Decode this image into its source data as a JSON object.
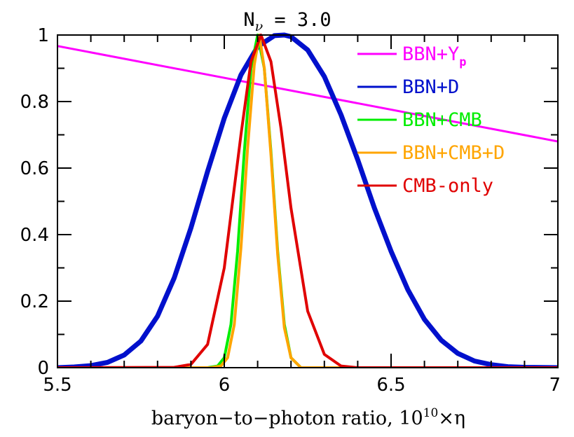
{
  "chart_data": {
    "type": "line",
    "title": {
      "main": "N",
      "sub": "ν",
      "rest": " = 3.0"
    },
    "xlabel": {
      "text": "baryon−to−photon ratio, 10",
      "sup": "10",
      "tail": "×η"
    },
    "ylabel": "",
    "xlim": [
      5.5,
      7.0
    ],
    "ylim": [
      0,
      1.0
    ],
    "x_ticks": [
      {
        "value": 5.5,
        "label": "5.5"
      },
      {
        "value": 6.0,
        "label": "6"
      },
      {
        "value": 6.5,
        "label": "6.5"
      },
      {
        "value": 7.0,
        "label": "7"
      }
    ],
    "y_ticks": [
      {
        "value": 0,
        "label": "0"
      },
      {
        "value": 0.2,
        "label": "0.2"
      },
      {
        "value": 0.4,
        "label": "0.4"
      },
      {
        "value": 0.6,
        "label": "0.6"
      },
      {
        "value": 0.8,
        "label": "0.8"
      },
      {
        "value": 1.0,
        "label": "1"
      }
    ],
    "x_minor_step": 0.1,
    "y_minor_step": 0.1,
    "grid": false,
    "legend_position": "top-right",
    "series": [
      {
        "name": "BBN+Y",
        "name_sub": "p",
        "color": "#ff00ff",
        "width": 3,
        "x": [
          5.5,
          7.0
        ],
        "y": [
          0.967,
          0.68
        ]
      },
      {
        "name": "BBN+D",
        "color": "#0010cc",
        "width": 7,
        "x": [
          5.5,
          5.55,
          5.6,
          5.65,
          5.7,
          5.75,
          5.8,
          5.85,
          5.9,
          5.95,
          6.0,
          6.05,
          6.1,
          6.15,
          6.18,
          6.2,
          6.25,
          6.3,
          6.35,
          6.4,
          6.45,
          6.5,
          6.55,
          6.6,
          6.65,
          6.7,
          6.75,
          6.8,
          6.85,
          6.9,
          7.0
        ],
        "y": [
          0.0,
          0.002,
          0.006,
          0.016,
          0.038,
          0.08,
          0.155,
          0.27,
          0.42,
          0.59,
          0.75,
          0.88,
          0.965,
          0.998,
          1.0,
          0.995,
          0.955,
          0.875,
          0.76,
          0.625,
          0.48,
          0.35,
          0.235,
          0.145,
          0.083,
          0.043,
          0.02,
          0.009,
          0.003,
          0.001,
          0.0
        ]
      },
      {
        "name": "BBN+CMB",
        "color": "#00ee00",
        "width": 4,
        "x": [
          5.5,
          5.95,
          5.98,
          6.0,
          6.02,
          6.04,
          6.06,
          6.08,
          6.1,
          6.12,
          6.14,
          6.16,
          6.18,
          6.2,
          6.23,
          7.0
        ],
        "y": [
          0.0,
          0.0,
          0.005,
          0.03,
          0.13,
          0.35,
          0.65,
          0.9,
          1.0,
          0.9,
          0.65,
          0.35,
          0.13,
          0.03,
          0.0,
          0.0
        ]
      },
      {
        "name": "BBN+CMB+D",
        "color": "#ffa500",
        "width": 4,
        "x": [
          5.5,
          5.96,
          5.99,
          6.01,
          6.03,
          6.05,
          6.07,
          6.09,
          6.105,
          6.12,
          6.14,
          6.16,
          6.18,
          6.2,
          6.23,
          7.0
        ],
        "y": [
          0.0,
          0.0,
          0.005,
          0.03,
          0.13,
          0.36,
          0.66,
          0.91,
          1.0,
          0.9,
          0.64,
          0.34,
          0.12,
          0.03,
          0.0,
          0.0
        ]
      },
      {
        "name": "CMB-only",
        "color": "#e00000",
        "width": 4,
        "x": [
          5.5,
          5.85,
          5.9,
          5.95,
          6.0,
          6.05,
          6.08,
          6.11,
          6.14,
          6.17,
          6.2,
          6.25,
          6.3,
          6.35,
          6.4,
          7.0
        ],
        "y": [
          0.0,
          0.001,
          0.01,
          0.07,
          0.3,
          0.7,
          0.92,
          1.0,
          0.92,
          0.72,
          0.48,
          0.17,
          0.04,
          0.005,
          0.0,
          0.0
        ]
      }
    ]
  }
}
